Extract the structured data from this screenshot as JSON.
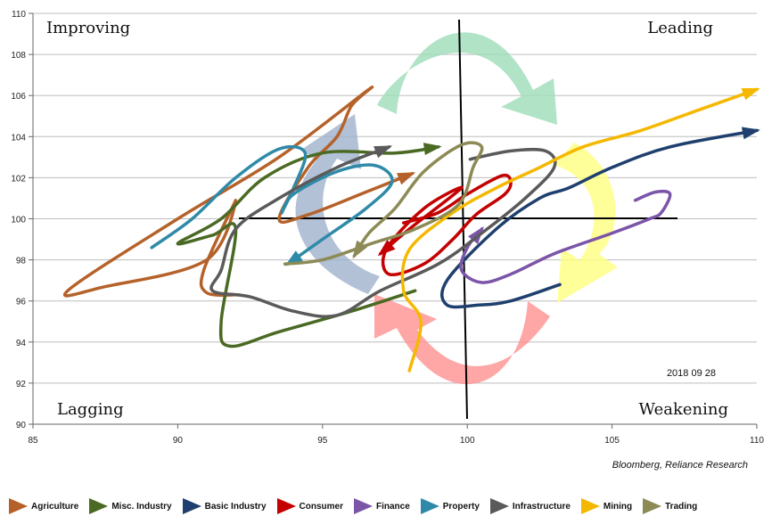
{
  "chart_data": {
    "type": "line",
    "title": "",
    "xlabel": "",
    "ylabel": "",
    "xlim": [
      85,
      110
    ],
    "ylim": [
      90,
      110
    ],
    "x_ticks": [
      85,
      90,
      95,
      100,
      105,
      110
    ],
    "y_ticks": [
      90,
      92,
      94,
      96,
      98,
      100,
      102,
      104,
      106,
      108,
      110
    ],
    "grid": "horizontal",
    "center": [
      100,
      100
    ],
    "quadrant_labels": {
      "top_left": "Improving",
      "top_right": "Leading",
      "bottom_left": "Lagging",
      "bottom_right": "Weakening"
    },
    "date_label": "2018 09 28",
    "legend_position": "bottom",
    "series": [
      {
        "name": "Agriculture",
        "color": "#b5622a",
        "points": [
          [
            92.1,
            96.3
          ],
          [
            91,
            96.4
          ],
          [
            90.9,
            97.5
          ],
          [
            92,
            100.9
          ],
          [
            91,
            98
          ],
          [
            87.5,
            96.7
          ],
          [
            86.2,
            96.5
          ],
          [
            90,
            100
          ],
          [
            93.5,
            103
          ],
          [
            96.6,
            106.3
          ],
          [
            96,
            105.5
          ],
          [
            95.5,
            104
          ],
          [
            94.5,
            102.5
          ],
          [
            93.5,
            100
          ],
          [
            94.5,
            100.2
          ],
          [
            96.5,
            101.3
          ],
          [
            98.1,
            102.2
          ]
        ]
      },
      {
        "name": "Misc. Industry",
        "color": "#4a6a24",
        "points": [
          [
            98.2,
            96.5
          ],
          [
            96,
            95.5
          ],
          [
            93.5,
            94.5
          ],
          [
            91.8,
            93.8
          ],
          [
            91.5,
            95
          ],
          [
            92,
            99.5
          ],
          [
            91.2,
            99.2
          ],
          [
            90,
            98.8
          ],
          [
            91.5,
            100
          ],
          [
            93,
            102
          ],
          [
            95,
            103.2
          ],
          [
            97.5,
            103.2
          ],
          [
            99,
            103.5
          ]
        ]
      },
      {
        "name": "Basic Industry",
        "color": "#1f3f6e",
        "points": [
          [
            103.2,
            96.8
          ],
          [
            101.5,
            96
          ],
          [
            100.4,
            95.8
          ],
          [
            99.3,
            95.8
          ],
          [
            99.3,
            97
          ],
          [
            101,
            99.5
          ],
          [
            102.5,
            101
          ],
          [
            103.5,
            101.5
          ],
          [
            105,
            102.5
          ],
          [
            107,
            103.5
          ],
          [
            110,
            104.3
          ]
        ]
      },
      {
        "name": "Consumer",
        "color": "#c40000",
        "points": [
          [
            97.8,
            99.8
          ],
          [
            99,
            100.3
          ],
          [
            100,
            101.2
          ],
          [
            101.2,
            102.1
          ],
          [
            101.5,
            101.8
          ],
          [
            101.3,
            101.2
          ],
          [
            100.3,
            100.2
          ],
          [
            99.5,
            99
          ],
          [
            98.5,
            97.8
          ],
          [
            97.3,
            97.3
          ],
          [
            97.2,
            98.5
          ],
          [
            98.5,
            100.5
          ],
          [
            99.8,
            101.5
          ],
          [
            98,
            99.5
          ],
          [
            97,
            98.3
          ]
        ]
      },
      {
        "name": "Finance",
        "color": "#7b55a8",
        "points": [
          [
            105.8,
            100.9
          ],
          [
            106.5,
            101.3
          ],
          [
            107,
            101.2
          ],
          [
            106.7,
            100.3
          ],
          [
            106.3,
            100
          ],
          [
            105,
            99.3
          ],
          [
            103,
            98.3
          ],
          [
            101.5,
            97.3
          ],
          [
            100.5,
            96.9
          ],
          [
            99.8,
            97.5
          ],
          [
            100,
            98.6
          ],
          [
            100.5,
            99.5
          ]
        ]
      },
      {
        "name": "Property",
        "color": "#2e8aa8",
        "points": [
          [
            89.1,
            98.6
          ],
          [
            90.5,
            100
          ],
          [
            92,
            102
          ],
          [
            93.5,
            103.4
          ],
          [
            94.4,
            103.2
          ],
          [
            94,
            101.5
          ],
          [
            93.6,
            100.3
          ],
          [
            94,
            101.2
          ],
          [
            95.5,
            102.3
          ],
          [
            96.8,
            102.6
          ],
          [
            97.4,
            101.8
          ],
          [
            96.5,
            100.5
          ],
          [
            95,
            99
          ],
          [
            93.8,
            97.8
          ]
        ]
      },
      {
        "name": "Infrastructure",
        "color": "#5a5a5a",
        "points": [
          [
            100.1,
            102.9
          ],
          [
            101.5,
            103.3
          ],
          [
            102.7,
            103.3
          ],
          [
            103,
            102.5
          ],
          [
            102,
            101
          ],
          [
            100.5,
            99.3
          ],
          [
            99,
            97.8
          ],
          [
            97,
            96.5
          ],
          [
            95.5,
            95.3
          ],
          [
            94,
            95.5
          ],
          [
            92.5,
            96.2
          ],
          [
            91.2,
            96.5
          ],
          [
            91.5,
            97.5
          ],
          [
            92,
            99.5
          ],
          [
            93.5,
            101
          ],
          [
            95.5,
            102.5
          ],
          [
            97.3,
            103.5
          ]
        ]
      },
      {
        "name": "Mining",
        "color": "#f5b800",
        "points": [
          [
            98,
            92.6
          ],
          [
            98.4,
            95
          ],
          [
            97.8,
            96.5
          ],
          [
            98,
            98.5
          ],
          [
            99.5,
            100.3
          ],
          [
            101,
            101.5
          ],
          [
            102.5,
            102.5
          ],
          [
            104,
            103.5
          ],
          [
            106,
            104.3
          ],
          [
            108,
            105.3
          ],
          [
            110,
            106.3
          ]
        ]
      },
      {
        "name": "Trading",
        "color": "#8c8a55",
        "points": [
          [
            93.7,
            97.8
          ],
          [
            95,
            98
          ],
          [
            96.7,
            98.8
          ],
          [
            98.2,
            99.5
          ],
          [
            99.7,
            100.7
          ],
          [
            100.2,
            102.5
          ],
          [
            100.5,
            103.5
          ],
          [
            99.8,
            103.6
          ],
          [
            98.5,
            102.3
          ],
          [
            97.5,
            100.5
          ],
          [
            96.6,
            99.3
          ],
          [
            96.1,
            98.2
          ]
        ]
      }
    ]
  },
  "source_text": "Bloomberg, Reliance Research"
}
